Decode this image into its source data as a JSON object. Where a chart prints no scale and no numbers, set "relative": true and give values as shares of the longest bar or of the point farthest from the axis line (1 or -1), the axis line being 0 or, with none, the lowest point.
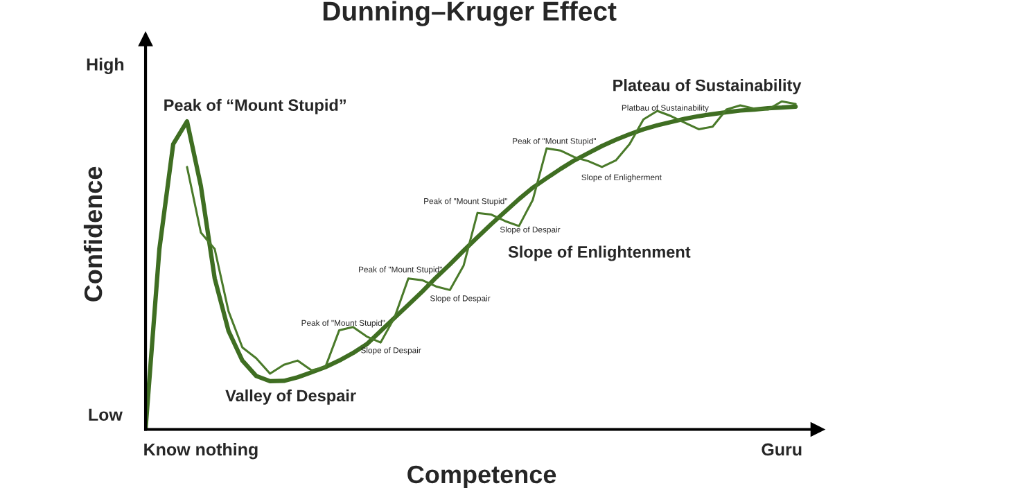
{
  "chart_data": {
    "type": "line",
    "title": "Dunning–Kruger Effect",
    "xlabel": "Competence",
    "ylabel": "Confidence",
    "relative": true,
    "legend": false,
    "marker": "none",
    "line_style": "solid",
    "categories": [
      null,
      null,
      null,
      null,
      "Know nothing",
      null,
      null,
      null,
      null,
      null,
      null,
      null,
      null,
      null,
      null,
      null,
      null,
      null,
      null,
      null,
      null,
      null,
      null,
      null,
      null,
      null,
      null,
      null,
      null,
      null,
      null,
      null,
      null,
      null,
      null,
      null,
      null,
      null,
      null,
      null,
      null,
      null,
      null,
      null,
      null,
      null,
      "Guru",
      null
    ],
    "series": [
      {
        "color": "#3f6e22",
        "values": [
          0.0,
          0.55,
          0.87,
          0.939,
          0.742,
          0.46,
          0.3,
          0.21,
          0.163,
          0.147,
          0.148,
          0.159,
          0.174,
          0.19,
          0.21,
          0.233,
          0.26,
          0.3,
          0.34,
          0.38,
          0.42,
          0.463,
          0.503,
          0.545,
          0.586,
          0.626,
          0.664,
          0.702,
          0.737,
          0.766,
          0.794,
          0.82,
          0.842,
          0.864,
          0.883,
          0.9,
          0.915,
          0.927,
          0.937,
          0.947,
          0.955,
          0.961,
          0.967,
          0.972,
          0.975,
          0.979,
          0.981,
          0.984
        ]
      },
      {
        "color": "#4a7a2a",
        "values": [
          null,
          null,
          null,
          0.8,
          0.6,
          0.55,
          0.36,
          0.25,
          0.217,
          0.17,
          0.197,
          0.21,
          0.18,
          0.19,
          0.302,
          0.312,
          0.283,
          0.265,
          0.341,
          0.46,
          0.455,
          0.436,
          0.425,
          0.5,
          0.66,
          0.655,
          0.635,
          0.62,
          0.7,
          0.857,
          0.85,
          0.83,
          0.818,
          0.8,
          0.82,
          0.87,
          0.945,
          0.971,
          0.955,
          0.935,
          0.915,
          0.923,
          0.975,
          0.988,
          0.978,
          0.975,
          1.0,
          0.992
        ]
      }
    ],
    "annotations": [
      "Peak of “Mount Stupid”",
      "Valley of Despair",
      "Slope of Enlightenment",
      "Plateau of Sustainability",
      "Peak of \"Mount Stupid\"",
      "Peak of \"Mount Stupid\"",
      "Peak of \"Mount Stupid\"",
      "Peak of \"Mount Stupid\"",
      "Slope of Despair",
      "Slope of Despair",
      "Slope of Despair",
      "Platbau of Sustainability",
      "Slope of Enligherment",
      "High",
      "Low"
    ]
  }
}
